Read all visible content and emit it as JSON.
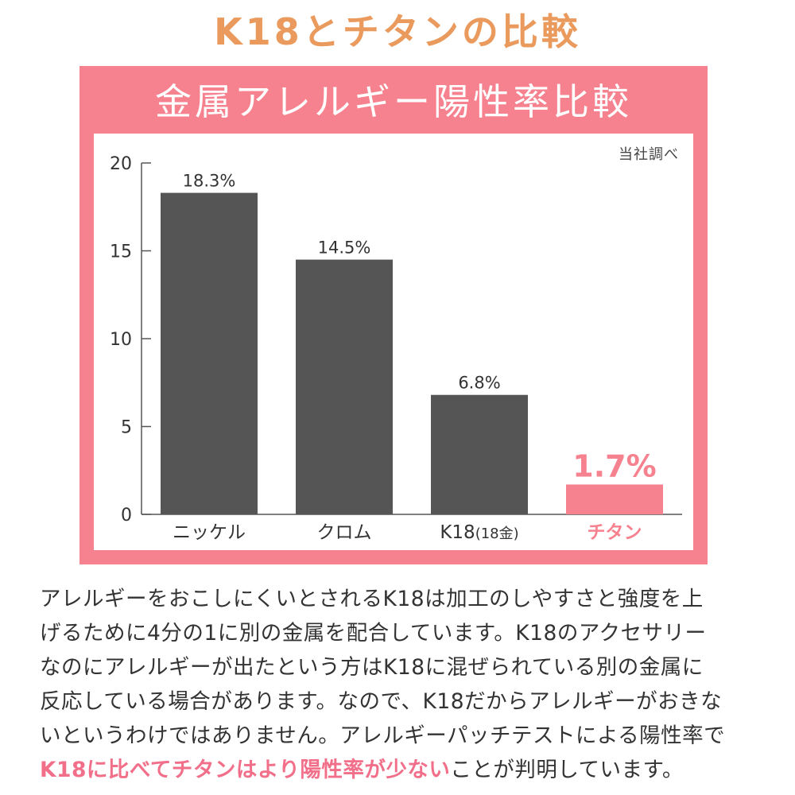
{
  "header": {
    "title": "K18とチタンの比較"
  },
  "chart_banner": {
    "title": "金属アレルギー陽性率比較"
  },
  "chart_data": {
    "type": "bar",
    "title": "金属アレルギー陽性率比較",
    "source_note": "当社調べ",
    "categories": [
      "ニッケル",
      "クロム",
      "K18",
      "チタン"
    ],
    "category_suffix": [
      "",
      "",
      "(18金)",
      ""
    ],
    "values": [
      18.3,
      14.5,
      6.8,
      1.7
    ],
    "value_labels": [
      "18.3%",
      "14.5%",
      "6.8%",
      "1.7%"
    ],
    "highlight_index": 3,
    "yticks": [
      0,
      5,
      10,
      15,
      20
    ],
    "ylim": [
      0,
      20
    ],
    "xlabel": "",
    "ylabel": "",
    "grid": false,
    "colors": {
      "bar": "#555555",
      "highlight": "#f7828f",
      "axis": "#555555"
    }
  },
  "description": {
    "lines": [
      "アレルギーをおこしにくいとされるK18は加工のしやすさと強度を上",
      "げるために4分の1に別の金属を配合しています。K18のアクセサリー",
      "なのにアレルギーが出たという方はK18に混ぜられている別の金属に",
      "反応している場合があります。なので、K18だからアレルギーがおきな",
      "いというわけではありません。アレルギーパッチテストによる陽性率で"
    ],
    "last_highlight": "K18に比べてチタンはより陽性率が少ない",
    "last_rest": "ことが判明しています。"
  }
}
